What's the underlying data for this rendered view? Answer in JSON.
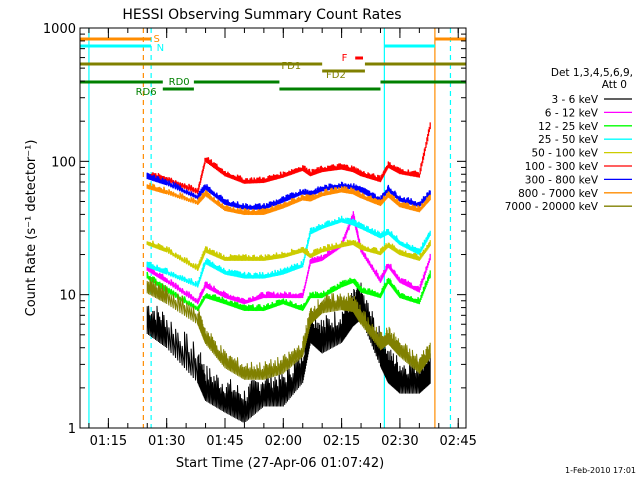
{
  "chart_data": {
    "type": "line",
    "title": "HESSI Observing Summary Count Rates",
    "xlabel": "Start Time (27-Apr-06 01:07:42)",
    "ylabel": "Count Rate (s⁻¹ detector⁻¹)",
    "yscale": "log",
    "ylim": [
      1,
      1000
    ],
    "xlim": [
      "01:07:42",
      "02:47:00"
    ],
    "x_ticks": [
      "01:15",
      "01:30",
      "01:45",
      "02:00",
      "02:15",
      "02:30",
      "02:45"
    ],
    "y_ticks": [
      "1",
      "10",
      "100",
      "1000"
    ],
    "legend": {
      "header": [
        "Det 1,3,4,5,6,9,",
        "Att 0"
      ],
      "position": "right",
      "entries": [
        {
          "label": "3 - 6 keV",
          "color": "#000000"
        },
        {
          "label": "6 - 12 keV",
          "color": "#ff00ff"
        },
        {
          "label": "12 - 25 keV",
          "color": "#00ff00"
        },
        {
          "label": "25 - 50 keV",
          "color": "#00ffff"
        },
        {
          "label": "50 - 100 keV",
          "color": "#cccc00"
        },
        {
          "label": "100 - 300 keV",
          "color": "#ff0000"
        },
        {
          "label": "300 - 800 keV",
          "color": "#0000ff"
        },
        {
          "label": "800 - 7000 keV",
          "color": "#ff8c00"
        },
        {
          "label": "7000 - 20000 keV",
          "color": "#808000"
        }
      ]
    },
    "flags": [
      {
        "label": "S",
        "color": "#ff8c00"
      },
      {
        "label": "N",
        "color": "#00ffff"
      },
      {
        "label": "F",
        "color": "#ff0000"
      },
      {
        "label": "FD1",
        "color": "#808000"
      },
      {
        "label": "FD2",
        "color": "#808000"
      },
      {
        "label": "RD0",
        "color": "#008000"
      },
      {
        "label": "RD6",
        "color": "#008000"
      }
    ],
    "vertical_markers": [
      {
        "time": "01:10",
        "color": "#00ffff",
        "style": "solid"
      },
      {
        "time": "01:24",
        "color": "#ff8c00",
        "style": "dashed"
      },
      {
        "time": "01:26",
        "color": "#00ffff",
        "style": "dashed"
      },
      {
        "time": "02:26",
        "color": "#00ffff",
        "style": "solid"
      },
      {
        "time": "02:39",
        "color": "#ff8c00",
        "style": "solid"
      },
      {
        "time": "02:43",
        "color": "#00ffff",
        "style": "dashed"
      }
    ],
    "x": [
      "01:25",
      "01:30",
      "01:38",
      "01:40",
      "01:45",
      "01:50",
      "01:55",
      "02:00",
      "02:05",
      "02:07",
      "02:10",
      "02:15",
      "02:18",
      "02:20",
      "02:25",
      "02:27",
      "02:30",
      "02:35",
      "02:38"
    ],
    "series": [
      {
        "name": "3 - 6 keV",
        "values": [
          7,
          5.5,
          3,
          2.2,
          1.8,
          1.5,
          2,
          2,
          3,
          6,
          5,
          6,
          8,
          9,
          4,
          3,
          2.5,
          2.5,
          3
        ]
      },
      {
        "name": "6 - 12 keV",
        "values": [
          16,
          13,
          9,
          12,
          10,
          9,
          10,
          10,
          10,
          18,
          19,
          24,
          40,
          22,
          13,
          17,
          13,
          11,
          20
        ]
      },
      {
        "name": "12 - 25 keV",
        "values": [
          14,
          11,
          8,
          10,
          9,
          8,
          8,
          9,
          8,
          10,
          10,
          12,
          13,
          11,
          10,
          13,
          10,
          9,
          15
        ]
      },
      {
        "name": "25 - 50 keV",
        "values": [
          17,
          15,
          12,
          18,
          15,
          14,
          14,
          15,
          17,
          30,
          33,
          37,
          35,
          33,
          28,
          30,
          25,
          21,
          30
        ]
      },
      {
        "name": "50 - 100 keV",
        "values": [
          25,
          22,
          16,
          22,
          19,
          19,
          19,
          20,
          22,
          20,
          22,
          24,
          25,
          23,
          21,
          24,
          21,
          19,
          25
        ]
      },
      {
        "name": "100 - 300 keV",
        "values": [
          80,
          75,
          60,
          105,
          82,
          72,
          73,
          80,
          90,
          82,
          88,
          92,
          88,
          82,
          74,
          95,
          85,
          80,
          200
        ]
      },
      {
        "name": "300 - 800 keV",
        "values": [
          78,
          70,
          55,
          65,
          50,
          46,
          46,
          52,
          60,
          58,
          63,
          67,
          65,
          62,
          52,
          63,
          53,
          48,
          60
        ]
      },
      {
        "name": "800 - 7000 keV",
        "values": [
          66,
          60,
          50,
          58,
          45,
          42,
          42,
          47,
          54,
          53,
          58,
          62,
          60,
          56,
          49,
          57,
          48,
          44,
          55
        ]
      },
      {
        "name": "7000 - 20000 keV",
        "values": [
          12,
          10,
          7,
          5,
          3.3,
          2.7,
          2.7,
          3,
          4,
          7,
          8.5,
          9,
          8.7,
          7,
          4.5,
          5,
          4,
          3,
          4
        ]
      }
    ]
  },
  "footer": {
    "timestamp": "1-Feb-2010 17:01"
  }
}
